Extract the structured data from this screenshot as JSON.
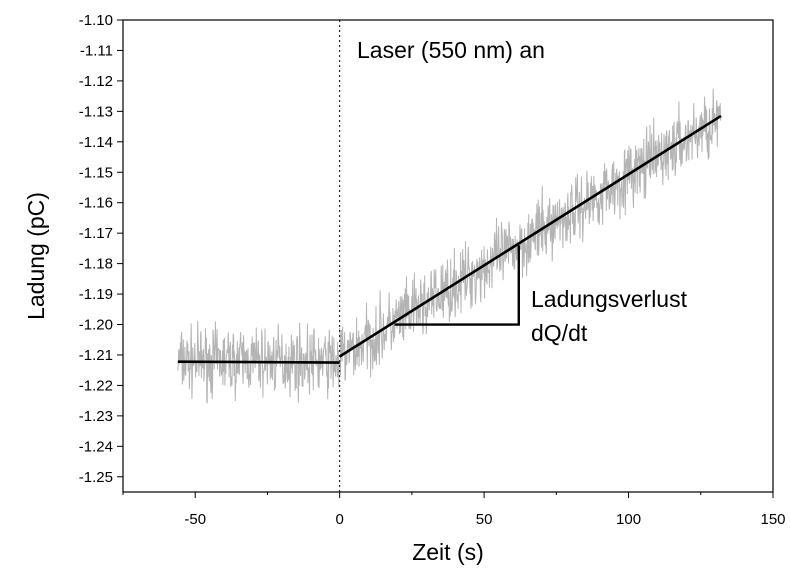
{
  "chart_data": {
    "type": "line",
    "xlabel": "Zeit (s)",
    "ylabel": "Ladung (pC)",
    "xlim": [
      -75,
      150
    ],
    "ylim": [
      -1.255,
      -1.1
    ],
    "xticks": [
      -50,
      0,
      50,
      100,
      150
    ],
    "xtick_labels": [
      "-50",
      "0",
      "50",
      "100",
      "150"
    ],
    "yticks": [
      -1.1,
      -1.11,
      -1.12,
      -1.13,
      -1.14,
      -1.15,
      -1.16,
      -1.17,
      -1.18,
      -1.19,
      -1.2,
      -1.21,
      -1.22,
      -1.23,
      -1.24,
      -1.25
    ],
    "ytick_labels": [
      "-1.10",
      "-1.11",
      "-1.12",
      "-1.13",
      "-1.14",
      "-1.15",
      "-1.16",
      "-1.17",
      "-1.18",
      "-1.19",
      "-1.20",
      "-1.21",
      "-1.22",
      "-1.23",
      "-1.24",
      "-1.25"
    ],
    "grid": false,
    "series": [
      {
        "style": "noisy-trace",
        "color": "#b4b4b4",
        "x_range": [
          -56,
          132
        ],
        "segments": [
          {
            "x": [
              -56,
              0
            ],
            "y": [
              -1.212,
              -1.212
            ],
            "noise_amplitude": 0.01
          },
          {
            "x": [
              0,
              132
            ],
            "y": [
              -1.211,
              -1.132
            ],
            "noise_amplitude": 0.01
          }
        ]
      },
      {
        "style": "fit-line",
        "color": "#000000",
        "x": [
          -56,
          0
        ],
        "y": [
          -1.2122,
          -1.2125
        ]
      },
      {
        "style": "fit-line",
        "color": "#000000",
        "x": [
          0,
          132
        ],
        "y": [
          -1.2105,
          -1.1315
        ]
      }
    ],
    "reference_line": {
      "x": 0,
      "style": "dotted",
      "color": "#000000"
    },
    "slope_triangle": {
      "x": [
        19,
        62
      ],
      "y": [
        -1.2,
        -1.174
      ]
    },
    "annotations": {
      "laser": "Laser (550 nm) an",
      "loss_line1": "Ladungsverlust",
      "loss_line2": "dQ/dt"
    }
  }
}
